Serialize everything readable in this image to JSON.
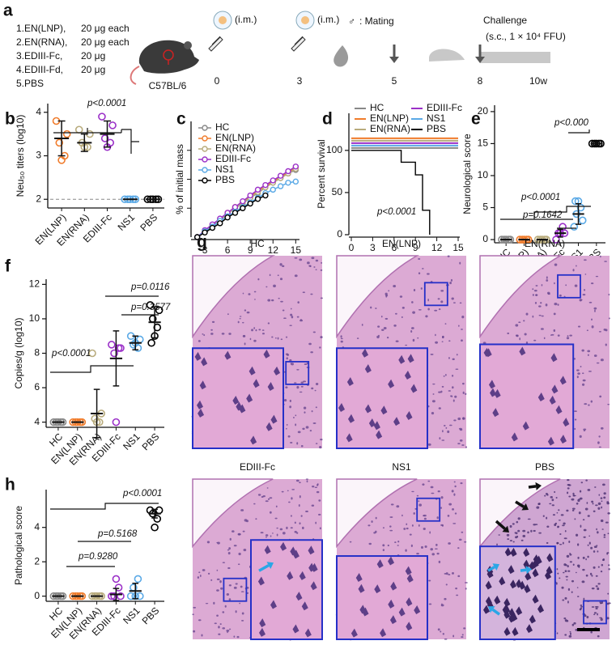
{
  "figure": {
    "panel_a": {
      "label": "a",
      "groups": [
        {
          "name": "1.EN(LNP),",
          "dose": "20 μg each"
        },
        {
          "name": "2.EN(RNA),",
          "dose": "20 μg each"
        },
        {
          "name": "3.EDIII-Fc,",
          "dose": "20 μg"
        },
        {
          "name": "4.EDIII-Fd,",
          "dose": "20 μg"
        },
        {
          "name": "5.PBS"
        }
      ],
      "strain": "C57BL/6",
      "route_1": "(i.m.)",
      "route_2": "(i.m.)",
      "mating_symbol": "♂",
      "mating": ": Mating",
      "challenge": "Challenge",
      "challenge_detail": "(s.c., 1 × 10⁴ FFU)",
      "timeline": [
        "0",
        "3",
        "5",
        "8",
        "10w"
      ]
    },
    "panel_g": {
      "label": "g",
      "images": [
        "HC",
        "EN(LNP)",
        "EN(RNA)",
        "EDIII-Fc",
        "NS1",
        "PBS"
      ]
    }
  },
  "chart_data": [
    {
      "type": "dotplot",
      "label": "b",
      "ylabel": "Neu₅₀ titers (log10)",
      "categories": [
        "EN(LNP)",
        "EN(RNA)",
        "EDIII-Fc",
        "NS1",
        "PBS"
      ],
      "colors": [
        "#f07c2c",
        "#b8ab7c",
        "#9b30c8",
        "#5aa9e6",
        "#000000"
      ],
      "means": [
        3.4,
        3.3,
        3.5,
        2,
        2
      ],
      "sds": [
        0.4,
        0.2,
        0.3,
        0,
        0
      ],
      "points": [
        [
          3.8,
          3.5,
          3.3,
          3.0,
          2.9
        ],
        [
          3.6,
          3.5,
          3.3,
          3.2,
          3.2
        ],
        [
          3.9,
          3.7,
          3.4,
          3.3,
          3.2
        ],
        [
          2,
          2,
          2,
          2,
          2
        ],
        [
          2,
          2,
          2,
          2,
          2
        ]
      ],
      "ylim": [
        1.8,
        4.2
      ],
      "yticks": [
        2,
        3,
        4
      ],
      "reference_line": 2,
      "annotations": [
        "p<0.0001"
      ]
    },
    {
      "type": "line",
      "label": "c",
      "xlabel": "Days p.i.",
      "ylabel": "% of initial mass",
      "x": [
        2,
        3,
        4,
        5,
        6,
        7,
        8,
        9,
        10,
        11,
        12,
        13,
        14,
        15
      ],
      "xlim": [
        1.5,
        15.5
      ],
      "xticks": [
        3,
        6,
        9,
        12,
        15
      ],
      "ylim": [
        0,
        100
      ],
      "series": [
        {
          "name": "HC",
          "color": "#888888",
          "values": [
            0,
            5,
            10,
            15,
            20,
            25,
            29,
            34,
            38,
            43,
            47,
            51,
            55,
            58
          ]
        },
        {
          "name": "EN(LNP)",
          "color": "#f07c2c",
          "values": [
            0,
            5,
            10,
            15,
            21,
            26,
            30,
            35,
            40,
            44,
            48,
            52,
            56,
            60
          ]
        },
        {
          "name": "EN(RNA)",
          "color": "#b8ab7c",
          "values": [
            0,
            5,
            10,
            15,
            20,
            25,
            30,
            34,
            39,
            43,
            47,
            51,
            55,
            59
          ]
        },
        {
          "name": "EDIII-Fc",
          "color": "#9b30c8",
          "values": [
            0,
            6,
            11,
            16,
            21,
            26,
            31,
            36,
            41,
            45,
            49,
            53,
            57,
            61
          ]
        },
        {
          "name": "NS1",
          "color": "#5aa9e6",
          "values": [
            0,
            5,
            9,
            14,
            18,
            22,
            26,
            30,
            34,
            38,
            41,
            44,
            47,
            48
          ]
        },
        {
          "name": "PBS",
          "color": "#000000",
          "values": [
            0,
            4,
            8,
            12,
            17,
            21,
            25,
            29,
            33,
            36,
            null,
            null,
            null,
            null
          ]
        }
      ]
    },
    {
      "type": "survival",
      "label": "d",
      "xlabel": "Days p.i.",
      "ylabel": "Percent survival",
      "xlim": [
        0,
        15
      ],
      "xticks": [
        0,
        3,
        6,
        9,
        12,
        15
      ],
      "ylim": [
        0,
        144
      ],
      "yticks": [
        0,
        50,
        100
      ],
      "series": [
        {
          "name": "HC",
          "color": "#888888",
          "x": [
            0,
            15
          ],
          "values": [
            100,
            100
          ]
        },
        {
          "name": "EN(LNP)",
          "color": "#f07c2c",
          "x": [
            0,
            15
          ],
          "values": [
            100,
            100
          ]
        },
        {
          "name": "EN(RNA)",
          "color": "#b8ab7c",
          "x": [
            0,
            15
          ],
          "values": [
            100,
            100
          ]
        },
        {
          "name": "EDIII-Fc",
          "color": "#9b30c8",
          "x": [
            0,
            15
          ],
          "values": [
            100,
            100
          ]
        },
        {
          "name": "NS1",
          "color": "#5aa9e6",
          "x": [
            0,
            15
          ],
          "values": [
            100,
            100
          ]
        },
        {
          "name": "PBS",
          "color": "#000000",
          "x": [
            0,
            7,
            9,
            10,
            11
          ],
          "values": [
            100,
            86,
            71,
            29,
            0
          ]
        }
      ],
      "annotations": [
        "p<0.0001"
      ]
    },
    {
      "type": "dotplot",
      "label": "e",
      "ylabel": "Neurological score",
      "categories": [
        "HC",
        "EN(LNP)",
        "EN(RNA)",
        "EDIII-Fc",
        "NS1",
        "PBS"
      ],
      "colors": [
        "#888888",
        "#f07c2c",
        "#b8ab7c",
        "#9b30c8",
        "#5aa9e6",
        "#000000"
      ],
      "means": [
        0,
        0,
        0,
        1,
        4,
        15
      ],
      "sds": [
        0,
        0,
        0,
        0.6,
        1.6,
        0.3
      ],
      "points": [
        [
          0,
          0,
          0,
          0,
          0
        ],
        [
          0,
          0,
          0,
          0,
          0
        ],
        [
          0,
          0,
          0,
          0,
          0
        ],
        [
          0,
          1,
          1,
          2,
          1
        ],
        [
          2,
          3,
          4,
          5,
          6,
          6
        ],
        [
          15,
          15,
          15,
          15,
          15
        ]
      ],
      "ylim": [
        -0.5,
        21
      ],
      "yticks": [
        0,
        5,
        10,
        15,
        20
      ],
      "annotations": [
        "p<0.000",
        "p<0.0001",
        "p=0.1642"
      ]
    },
    {
      "type": "dotplot",
      "label": "f",
      "ylabel": "Copies/g (log10)",
      "categories": [
        "HC",
        "EN(LNP)",
        "EN(RNA)",
        "EDIII-Fc",
        "NS1",
        "PBS"
      ],
      "colors": [
        "#888888",
        "#f07c2c",
        "#b8ab7c",
        "#9b30c8",
        "#5aa9e6",
        "#000000"
      ],
      "means": [
        4,
        4,
        4.5,
        7.7,
        8.6,
        9.8
      ],
      "sds": [
        0,
        0,
        1.4,
        1.6,
        0.4,
        0.9
      ],
      "points": [
        [
          4,
          4,
          4,
          4,
          4
        ],
        [
          4,
          4,
          4,
          4,
          4
        ],
        [
          8,
          4.5,
          4.2,
          4,
          4
        ],
        [
          8.5,
          8.3,
          8,
          8.3,
          4
        ],
        [
          9,
          8.8,
          8.5,
          8.3,
          8.6
        ],
        [
          10.8,
          10.5,
          10,
          9.5,
          9,
          8.6
        ]
      ],
      "ylim": [
        3.7,
        12.3
      ],
      "yticks": [
        4,
        6,
        8,
        10,
        12
      ],
      "annotations": [
        "p=0.0116",
        "p=0.3577",
        "p<0.0001"
      ]
    },
    {
      "type": "dotplot",
      "label": "h",
      "ylabel": "Pathological score",
      "categories": [
        "HC",
        "EN(LNP)",
        "EN(RNA)",
        "EDIII-Fc",
        "NS1",
        "PBS"
      ],
      "colors": [
        "#888888",
        "#f07c2c",
        "#b8ab7c",
        "#9b30c8",
        "#5aa9e6",
        "#000000"
      ],
      "means": [
        0,
        0,
        0,
        0.1,
        0.3,
        4.8
      ],
      "sds": [
        0,
        0,
        0,
        0.35,
        0.45,
        0.25
      ],
      "points": [
        [
          0,
          0,
          0,
          0,
          0
        ],
        [
          0,
          0,
          0,
          0,
          0
        ],
        [
          0,
          0,
          0,
          0,
          0
        ],
        [
          0,
          0,
          0,
          0.5,
          1
        ],
        [
          0,
          0,
          0.5,
          1,
          0
        ],
        [
          5,
          5,
          4.8,
          4.5,
          4
        ]
      ],
      "ylim": [
        -0.3,
        6.2
      ],
      "yticks": [
        0,
        2,
        4
      ],
      "annotations": [
        "p<0.0001",
        "p=0.5168",
        "p=0.9280"
      ]
    }
  ]
}
